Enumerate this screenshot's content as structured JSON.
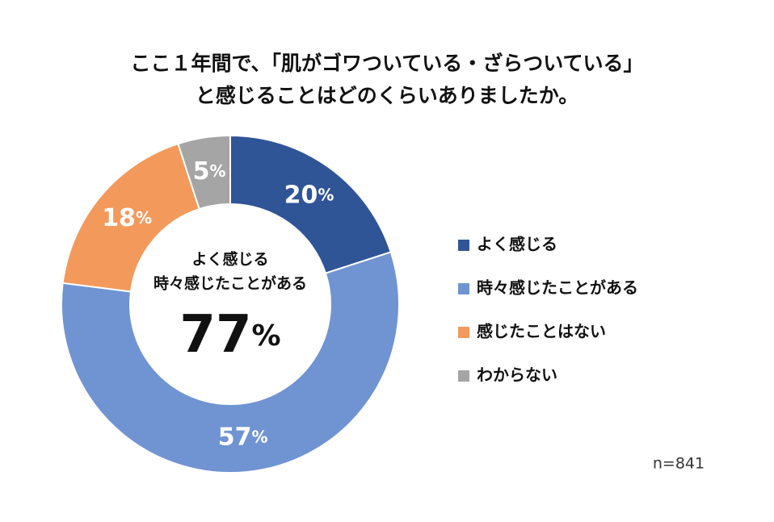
{
  "chart_data": {
    "type": "donut",
    "title": [
      "ここ１年間で、「肌がゴワついている・ざらついている」",
      "と感じることはどのくらいありましたか。"
    ],
    "categories": [
      "よく感じる",
      "時々感じたことがある",
      "感じたことはない",
      "わからない"
    ],
    "values": [
      20,
      57,
      18,
      5
    ],
    "value_labels": [
      "20%",
      "57%",
      "18%",
      "5%"
    ],
    "colors": [
      "#2f5597",
      "#7094d2",
      "#f4995c",
      "#a5a5a5"
    ],
    "center_text": [
      "よく感じる",
      "時々感じたことがある"
    ],
    "center_value": "77%",
    "note": "n=841",
    "legend": "right"
  }
}
